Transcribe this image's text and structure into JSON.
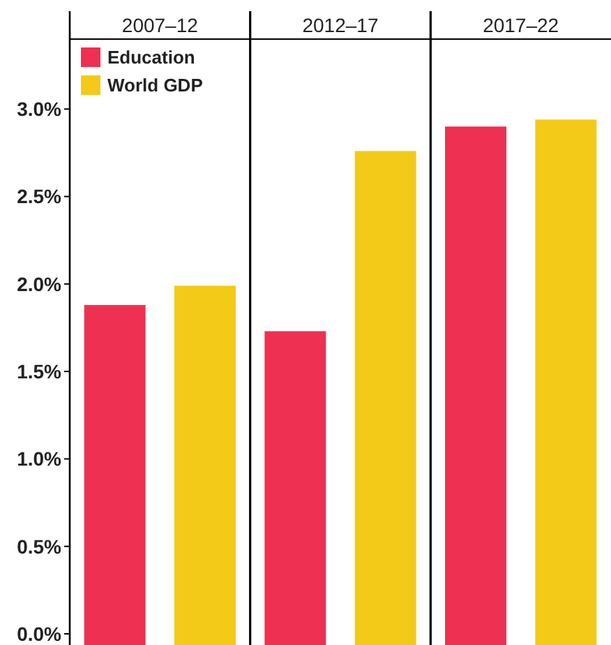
{
  "chart_data": {
    "type": "bar",
    "categories": [
      "2007–12",
      "2012–17",
      "2017–22"
    ],
    "series": [
      {
        "name": "Education",
        "color": "#ee3152",
        "values": [
          1.88,
          1.73,
          2.9
        ]
      },
      {
        "name": "World GDP",
        "color": "#f4ca18",
        "values": [
          1.99,
          2.76,
          2.94
        ]
      }
    ],
    "ylim": [
      0,
      3.4
    ],
    "yticks": [
      {
        "value": 0,
        "label": "0.0%"
      },
      {
        "value": 0.5,
        "label": "0.5%"
      },
      {
        "value": 1,
        "label": "1.0%"
      },
      {
        "value": 1.5,
        "label": "1.5%"
      },
      {
        "value": 2,
        "label": "2.0%"
      },
      {
        "value": 2.5,
        "label": "2.5%"
      },
      {
        "value": 3,
        "label": "3.0%"
      }
    ],
    "grid": false,
    "legend": "top left"
  }
}
